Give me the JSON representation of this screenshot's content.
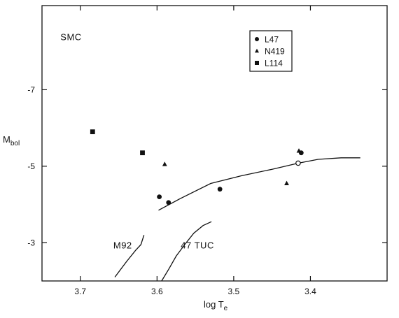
{
  "chart_data": {
    "type": "scatter",
    "xlabel": "log T",
    "xlabel_sub": "e",
    "ylabel": "M",
    "ylabel_sub": "bol",
    "xlim": [
      3.75,
      3.3
    ],
    "ylim": [
      -2.0,
      -9.2
    ],
    "xticks": [
      3.7,
      3.6,
      3.5,
      3.4
    ],
    "xtick_labels": [
      "3.7",
      "3.6",
      "3.5",
      "3.4"
    ],
    "yticks": [
      -7,
      -5,
      -3
    ],
    "ytick_labels": [
      "-7",
      "-5",
      "-3"
    ],
    "series": [
      {
        "name": "L47",
        "marker": "circle",
        "points": [
          [
            3.597,
            -4.2
          ],
          [
            3.585,
            -4.05
          ],
          [
            3.518,
            -4.4
          ],
          [
            3.412,
            -5.35
          ]
        ]
      },
      {
        "name": "N419",
        "marker": "triangle",
        "points": [
          [
            3.59,
            -5.05
          ],
          [
            3.431,
            -4.55
          ],
          [
            3.415,
            -5.4
          ]
        ]
      },
      {
        "name": "L114",
        "marker": "square",
        "points": [
          [
            3.684,
            -5.9
          ],
          [
            3.619,
            -5.35
          ]
        ]
      }
    ],
    "open_point": [
      3.416,
      -5.08
    ],
    "curves": [
      {
        "label": "SMC giant branch",
        "points": [
          [
            3.598,
            -3.85
          ],
          [
            3.57,
            -4.15
          ],
          [
            3.53,
            -4.55
          ],
          [
            3.49,
            -4.75
          ],
          [
            3.45,
            -4.92
          ],
          [
            3.416,
            -5.08
          ],
          [
            3.39,
            -5.18
          ],
          [
            3.36,
            -5.22
          ],
          [
            3.335,
            -5.22
          ]
        ]
      },
      {
        "label": "M92",
        "points": [
          [
            3.655,
            -2.1
          ],
          [
            3.64,
            -2.5
          ],
          [
            3.628,
            -2.8
          ],
          [
            3.621,
            -2.95
          ],
          [
            3.617,
            -3.2
          ]
        ]
      },
      {
        "label": "47 TUC",
        "points": [
          [
            3.594,
            -2.0
          ],
          [
            3.585,
            -2.3
          ],
          [
            3.575,
            -2.65
          ],
          [
            3.564,
            -2.95
          ],
          [
            3.552,
            -3.25
          ],
          [
            3.54,
            -3.45
          ],
          [
            3.529,
            -3.55
          ]
        ]
      }
    ],
    "annotations": [
      {
        "text": "SMC",
        "x": 3.726,
        "y": -8.3
      },
      {
        "text": "M92",
        "x": 3.657,
        "y": -2.85
      },
      {
        "text": "47 TUC",
        "x": 3.569,
        "y": -2.85
      }
    ],
    "legend": {
      "position": "top-right",
      "items": [
        {
          "marker": "circle",
          "label": "L47"
        },
        {
          "marker": "triangle",
          "label": "N419"
        },
        {
          "marker": "square",
          "label": "L114"
        }
      ]
    },
    "grid": false
  }
}
